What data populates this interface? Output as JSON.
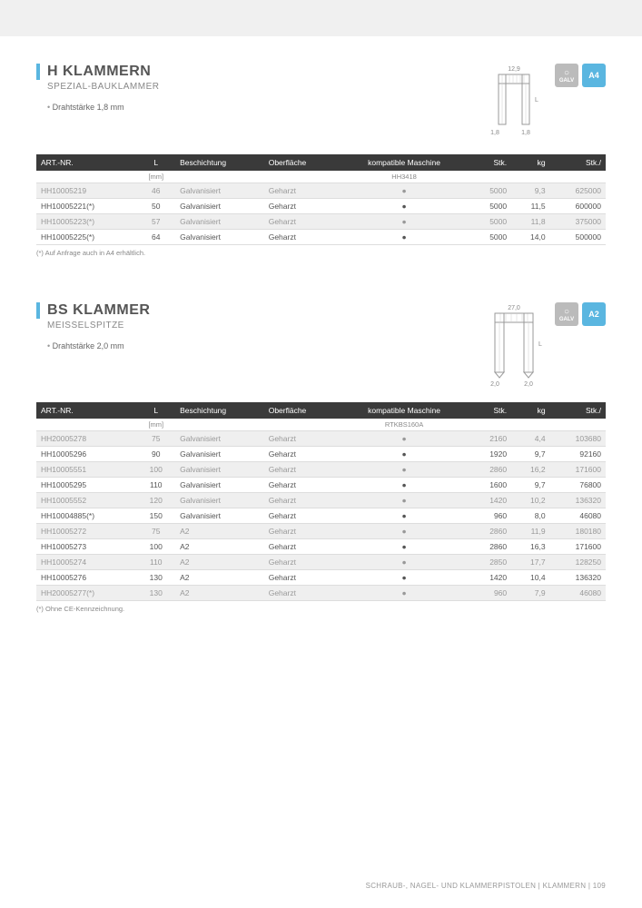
{
  "sections": [
    {
      "title": "H KLAMMERN",
      "subtitle": "SPEZIAL-BAUKLAMMER",
      "spec": "Drahtstärke 1,8 mm",
      "diagram": {
        "top": "12,9",
        "side": "L",
        "bottomLeft": "1,8",
        "bottomRight": "1,8"
      },
      "badges": [
        "GALV",
        "A4"
      ],
      "columns": [
        "ART.-NR.",
        "L",
        "Beschichtung",
        "Oberfläche",
        "kompatible Maschine",
        "Stk.",
        "kg",
        "Stk./"
      ],
      "subheader": [
        "",
        "[mm]",
        "",
        "",
        "HH3418",
        "",
        "",
        ""
      ],
      "rows": [
        {
          "art": "HH10005219",
          "l": "46",
          "besch": "Galvanisiert",
          "ober": "Geharzt",
          "komp": "●",
          "stk": "5000",
          "kg": "9,3",
          "stkp": "625000",
          "shaded": true
        },
        {
          "art": "HH10005221(*)",
          "l": "50",
          "besch": "Galvanisiert",
          "ober": "Geharzt",
          "komp": "●",
          "stk": "5000",
          "kg": "11,5",
          "stkp": "600000",
          "shaded": false
        },
        {
          "art": "HH10005223(*)",
          "l": "57",
          "besch": "Galvanisiert",
          "ober": "Geharzt",
          "komp": "●",
          "stk": "5000",
          "kg": "11,8",
          "stkp": "375000",
          "shaded": true
        },
        {
          "art": "HH10005225(*)",
          "l": "64",
          "besch": "Galvanisiert",
          "ober": "Geharzt",
          "komp": "●",
          "stk": "5000",
          "kg": "14,0",
          "stkp": "500000",
          "shaded": false
        }
      ],
      "footnote": "(*) Auf Anfrage auch in A4 erhältlich."
    },
    {
      "title": "BS KLAMMER",
      "subtitle": "MEISSELSPITZE",
      "spec": "Drahtstärke 2,0 mm",
      "diagram": {
        "top": "27,0",
        "side": "L",
        "bottomLeft": "2,0",
        "bottomRight": "2,0"
      },
      "badges": [
        "GALV",
        "A2"
      ],
      "columns": [
        "ART.-NR.",
        "L",
        "Beschichtung",
        "Oberfläche",
        "kompatible Maschine",
        "Stk.",
        "kg",
        "Stk./"
      ],
      "subheader": [
        "",
        "[mm]",
        "",
        "",
        "RTKBS160A",
        "",
        "",
        ""
      ],
      "rows": [
        {
          "art": "HH20005278",
          "l": "75",
          "besch": "Galvanisiert",
          "ober": "Geharzt",
          "komp": "●",
          "stk": "2160",
          "kg": "4,4",
          "stkp": "103680",
          "shaded": true
        },
        {
          "art": "HH10005296",
          "l": "90",
          "besch": "Galvanisiert",
          "ober": "Geharzt",
          "komp": "●",
          "stk": "1920",
          "kg": "9,7",
          "stkp": "92160",
          "shaded": false
        },
        {
          "art": "HH10005551",
          "l": "100",
          "besch": "Galvanisiert",
          "ober": "Geharzt",
          "komp": "●",
          "stk": "2860",
          "kg": "16,2",
          "stkp": "171600",
          "shaded": true
        },
        {
          "art": "HH10005295",
          "l": "110",
          "besch": "Galvanisiert",
          "ober": "Geharzt",
          "komp": "●",
          "stk": "1600",
          "kg": "9,7",
          "stkp": "76800",
          "shaded": false
        },
        {
          "art": "HH10005552",
          "l": "120",
          "besch": "Galvanisiert",
          "ober": "Geharzt",
          "komp": "●",
          "stk": "1420",
          "kg": "10,2",
          "stkp": "136320",
          "shaded": true
        },
        {
          "art": "HH10004885(*)",
          "l": "150",
          "besch": "Galvanisiert",
          "ober": "Geharzt",
          "komp": "●",
          "stk": "960",
          "kg": "8,0",
          "stkp": "46080",
          "shaded": false
        },
        {
          "art": "HH10005272",
          "l": "75",
          "besch": "A2",
          "ober": "Geharzt",
          "komp": "●",
          "stk": "2860",
          "kg": "11,9",
          "stkp": "180180",
          "shaded": true
        },
        {
          "art": "HH10005273",
          "l": "100",
          "besch": "A2",
          "ober": "Geharzt",
          "komp": "●",
          "stk": "2860",
          "kg": "16,3",
          "stkp": "171600",
          "shaded": false
        },
        {
          "art": "HH10005274",
          "l": "110",
          "besch": "A2",
          "ober": "Geharzt",
          "komp": "●",
          "stk": "2850",
          "kg": "17,7",
          "stkp": "128250",
          "shaded": true
        },
        {
          "art": "HH10005276",
          "l": "130",
          "besch": "A2",
          "ober": "Geharzt",
          "komp": "●",
          "stk": "1420",
          "kg": "10,4",
          "stkp": "136320",
          "shaded": false
        },
        {
          "art": "HH20005277(*)",
          "l": "130",
          "besch": "A2",
          "ober": "Geharzt",
          "komp": "●",
          "stk": "960",
          "kg": "7,9",
          "stkp": "46080",
          "shaded": true
        }
      ],
      "footnote": "(*) Ohne CE-Kennzeichnung."
    }
  ],
  "footer": "SCHRAUB-, NAGEL- UND KLAMMERPISTOLEN  |  KLAMMERN  |  109"
}
